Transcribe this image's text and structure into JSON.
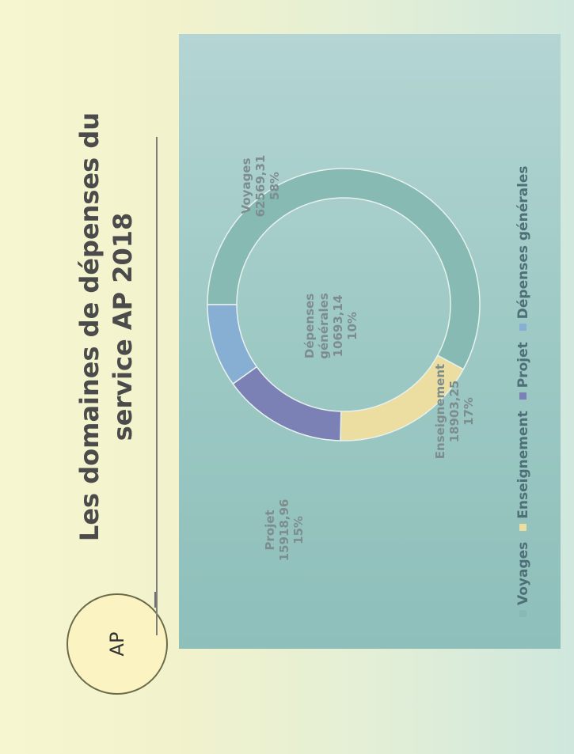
{
  "slide": {
    "title_line1": "Les domaines de dépenses du",
    "title_line2": "service AP 2018",
    "badge": "AP"
  },
  "chart_data": {
    "type": "pie",
    "donut": true,
    "title": "",
    "legend_position": "bottom",
    "series": [
      {
        "name": "Voyages",
        "value": 62569.31,
        "value_label": "62569,31",
        "percent_label": "58%",
        "color": "#86bab2"
      },
      {
        "name": "Enseignement",
        "value": 18903.25,
        "value_label": "18903,25",
        "percent_label": "17%",
        "color": "#ecdda1"
      },
      {
        "name": "Projet",
        "value": 15918.96,
        "value_label": "15918,96",
        "percent_label": "15%",
        "color": "#7b81b5"
      },
      {
        "name": "Dépenses générales",
        "value": 10693.14,
        "value_label": "10693,14",
        "percent_label": "10%",
        "color": "#86afd3"
      }
    ],
    "data_labels": [
      {
        "lines": [
          "Voyages",
          "62569,31",
          "58%"
        ]
      },
      {
        "lines": [
          "Enseignement",
          "18903,25",
          "17%"
        ]
      },
      {
        "lines": [
          "Projet",
          "15918,96",
          "15%"
        ]
      },
      {
        "lines": [
          "Dépenses",
          "générales",
          "10693,14",
          "10%"
        ]
      }
    ]
  }
}
